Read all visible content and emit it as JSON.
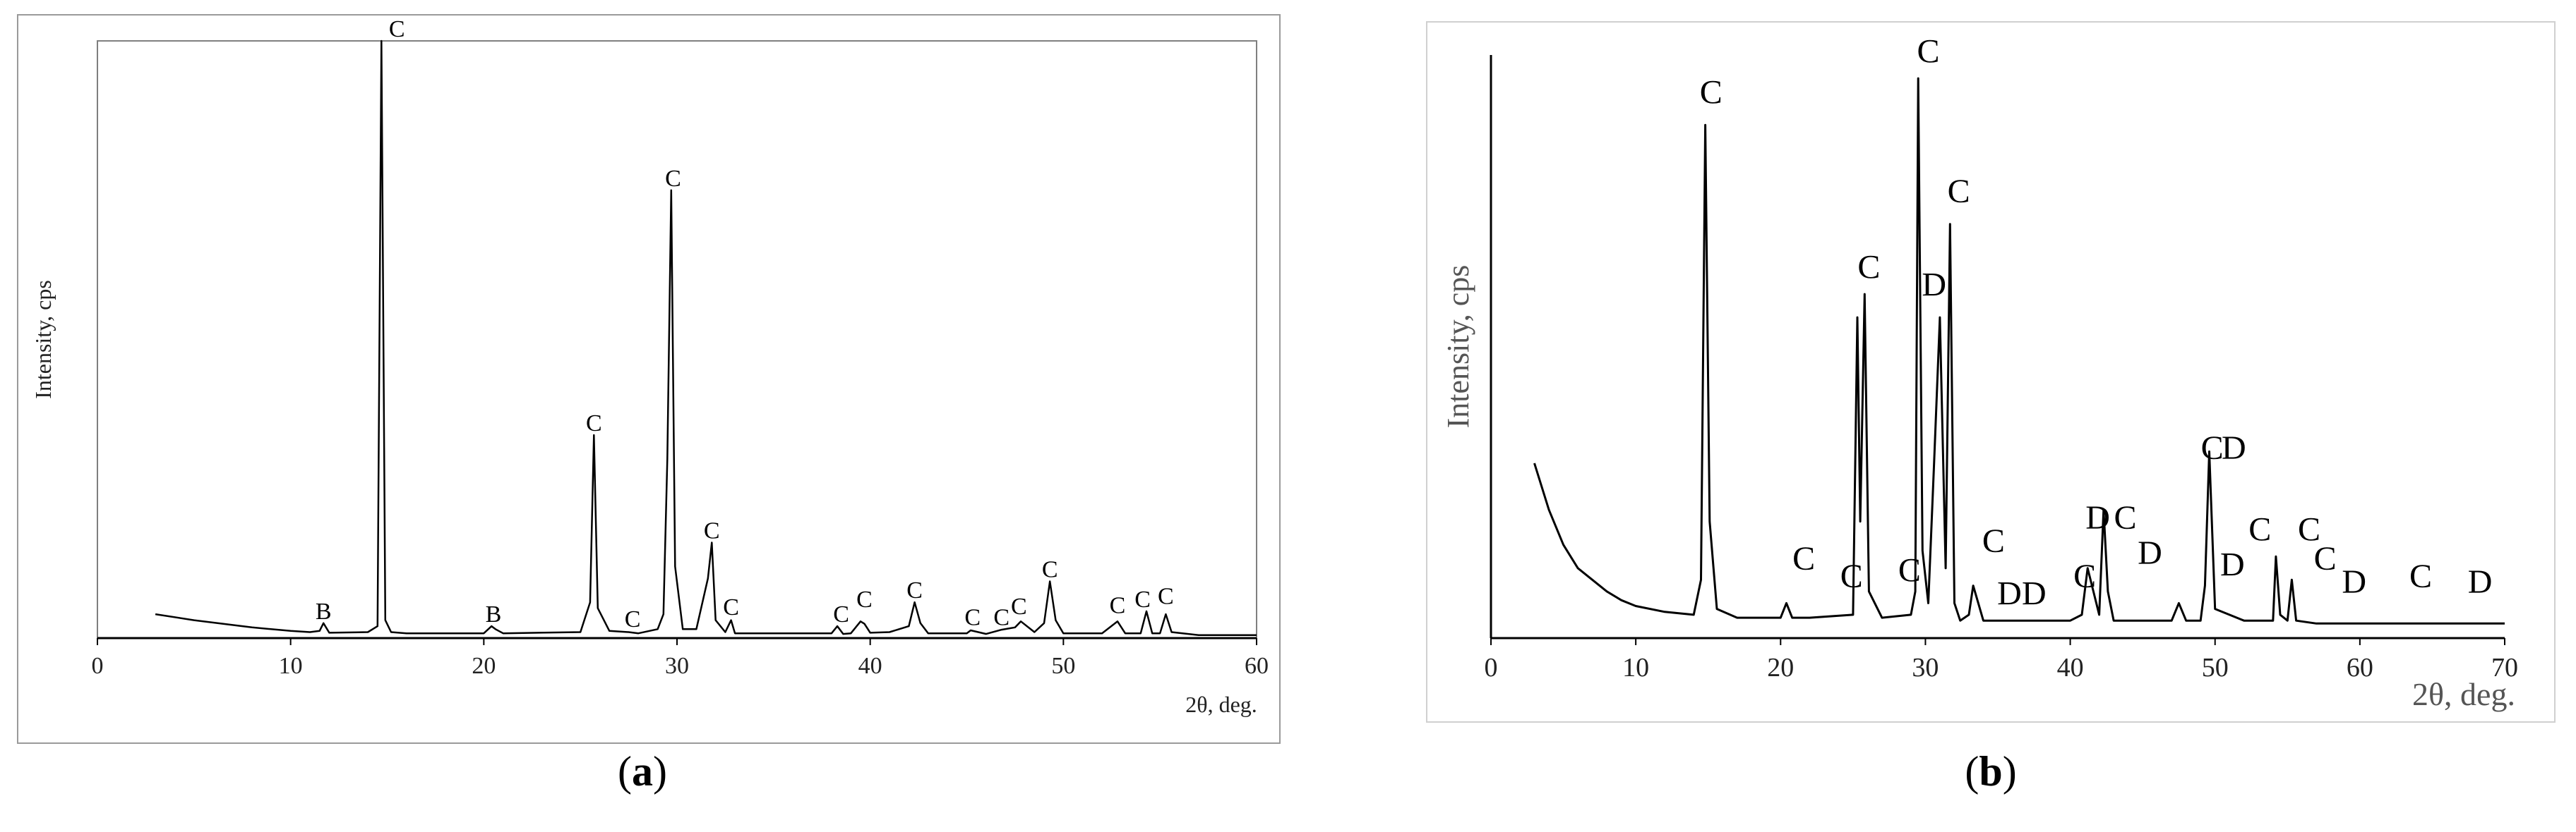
{
  "captions": {
    "a": "a",
    "b": "b"
  },
  "chart_data": [
    {
      "type": "line",
      "title": "",
      "xlabel": "2θ, deg.",
      "ylabel": "Intensity, cps",
      "xlim": [
        0,
        60
      ],
      "xticks": [
        0,
        10,
        20,
        30,
        40,
        50,
        60
      ],
      "ylim": [
        0,
        100
      ],
      "grid": false,
      "series": [
        {
          "x": [
            3,
            5,
            8,
            10,
            11,
            11.5,
            11.7,
            12,
            14,
            14.5,
            14.7,
            14.9,
            15.2,
            16,
            20,
            20.4,
            20.6,
            21,
            25,
            25.5,
            25.7,
            25.9,
            26.5,
            27.5,
            28,
            29,
            29.3,
            29.5,
            29.7,
            29.9,
            30.3,
            31,
            31.6,
            31.8,
            32,
            32.5,
            32.8,
            33,
            34,
            38,
            38.3,
            38.6,
            39,
            39.5,
            39.7,
            40,
            41,
            42,
            42.3,
            42.6,
            43,
            45,
            45.2,
            46,
            46.8,
            47.5,
            47.8,
            48.5,
            49,
            49.3,
            49.6,
            50,
            52,
            52.8,
            53.2,
            54,
            54.3,
            54.6,
            55,
            55.3,
            55.6,
            57,
            60
          ],
          "y": [
            4,
            3,
            1.8,
            1.2,
            1,
            1.2,
            2.5,
            0.9,
            1,
            2,
            100,
            3,
            1,
            0.8,
            0.8,
            2,
            1.5,
            0.8,
            1,
            6,
            34,
            5,
            1.2,
            1,
            0.8,
            1.5,
            4,
            30,
            75,
            12,
            1.5,
            1.5,
            10,
            16,
            3,
            1,
            3,
            0.8,
            0.8,
            0.8,
            2,
            0.7,
            0.8,
            2.8,
            2.4,
            0.9,
            1,
            2,
            6,
            2.5,
            0.8,
            0.8,
            1.3,
            0.7,
            1.4,
            1.8,
            2.8,
            1,
            2.5,
            9.5,
            3,
            0.8,
            0.8,
            2.8,
            0.8,
            0.8,
            4.5,
            0.8,
            0.8,
            4,
            1,
            0.5,
            0.5
          ]
        }
      ],
      "annotations": [
        {
          "x": 11.7,
          "y": 2.5,
          "text": "B"
        },
        {
          "x": 15.5,
          "y": 100,
          "text": "C"
        },
        {
          "x": 20.5,
          "y": 2.0,
          "text": "B"
        },
        {
          "x": 25.7,
          "y": 34,
          "text": "C"
        },
        {
          "x": 27.7,
          "y": 1.2,
          "text": "C"
        },
        {
          "x": 29.8,
          "y": 75,
          "text": "C"
        },
        {
          "x": 31.8,
          "y": 16,
          "text": "C"
        },
        {
          "x": 32.8,
          "y": 3.2,
          "text": "C"
        },
        {
          "x": 38.5,
          "y": 2.0,
          "text": "C"
        },
        {
          "x": 39.7,
          "y": 4.5,
          "text": "C"
        },
        {
          "x": 42.3,
          "y": 6.0,
          "text": "C"
        },
        {
          "x": 45.3,
          "y": 1.5,
          "text": "C"
        },
        {
          "x": 46.8,
          "y": 1.5,
          "text": "C"
        },
        {
          "x": 47.7,
          "y": 3.3,
          "text": "C"
        },
        {
          "x": 49.3,
          "y": 9.5,
          "text": "C"
        },
        {
          "x": 52.8,
          "y": 3.5,
          "text": "C"
        },
        {
          "x": 54.1,
          "y": 4.5,
          "text": "C"
        },
        {
          "x": 55.3,
          "y": 5.0,
          "text": "C"
        }
      ]
    },
    {
      "type": "line",
      "title": "",
      "xlabel": "2θ, deg.",
      "ylabel": "Intensity, cps",
      "xlim": [
        0,
        70
      ],
      "xticks": [
        0,
        10,
        20,
        30,
        40,
        50,
        60,
        70
      ],
      "ylim": [
        0,
        100
      ],
      "grid": false,
      "series": [
        {
          "x": [
            3,
            4,
            5,
            6,
            7,
            8,
            9,
            10,
            12,
            14,
            14.5,
            14.8,
            15.1,
            15.6,
            17,
            20,
            20.4,
            20.8,
            22,
            25,
            25.3,
            25.5,
            25.8,
            26.1,
            27,
            29,
            29.3,
            29.5,
            29.8,
            30.2,
            30.6,
            31,
            31.4,
            31.7,
            32,
            32.4,
            33,
            33.3,
            34,
            37,
            40,
            40.8,
            41.2,
            42,
            42.3,
            42.6,
            43,
            47,
            47.5,
            48,
            49,
            49.3,
            49.6,
            50,
            52,
            52.5,
            53,
            54,
            54.2,
            54.5,
            55,
            55.3,
            55.6,
            57,
            60,
            62,
            64,
            66,
            70
          ],
          "y": [
            30,
            22,
            16,
            12,
            10,
            8,
            6.5,
            5.5,
            4.5,
            4,
            10,
            88,
            20,
            5,
            3.5,
            3.5,
            6,
            3.5,
            3.5,
            4,
            55,
            20,
            59,
            8,
            3.5,
            4,
            8,
            96,
            15,
            6,
            30,
            55,
            12,
            71,
            6,
            3,
            4,
            9,
            3,
            3,
            3,
            4,
            12,
            4,
            22,
            8,
            3,
            3,
            6,
            3,
            3,
            9,
            32,
            5,
            3,
            3,
            3,
            3,
            14,
            4,
            3,
            10,
            3,
            2.5,
            2.5,
            2.5,
            2.5,
            2.5,
            2.5
          ]
        }
      ],
      "annotations": [
        {
          "x": 15.2,
          "y": 91,
          "text": "C"
        },
        {
          "x": 30.2,
          "y": 98,
          "text": "C"
        },
        {
          "x": 32.3,
          "y": 74,
          "text": "C"
        },
        {
          "x": 26.1,
          "y": 61,
          "text": "C"
        },
        {
          "x": 30.6,
          "y": 58,
          "text": "D"
        },
        {
          "x": 21.6,
          "y": 11,
          "text": "C"
        },
        {
          "x": 24.9,
          "y": 8,
          "text": "C"
        },
        {
          "x": 28.9,
          "y": 9,
          "text": "C"
        },
        {
          "x": 34.7,
          "y": 14,
          "text": "C"
        },
        {
          "x": 35.8,
          "y": 5,
          "text": "D"
        },
        {
          "x": 37.5,
          "y": 5,
          "text": "D"
        },
        {
          "x": 41.0,
          "y": 8,
          "text": "C"
        },
        {
          "x": 41.9,
          "y": 18,
          "text": "D"
        },
        {
          "x": 43.8,
          "y": 18,
          "text": "C"
        },
        {
          "x": 45.5,
          "y": 12,
          "text": "D"
        },
        {
          "x": 49.8,
          "y": 30,
          "text": "C"
        },
        {
          "x": 51.3,
          "y": 30,
          "text": "D"
        },
        {
          "x": 51.2,
          "y": 10,
          "text": "D"
        },
        {
          "x": 53.1,
          "y": 16,
          "text": "C"
        },
        {
          "x": 56.5,
          "y": 16,
          "text": "C"
        },
        {
          "x": 57.6,
          "y": 11,
          "text": "C"
        },
        {
          "x": 59.6,
          "y": 7,
          "text": "D"
        },
        {
          "x": 64.2,
          "y": 8,
          "text": "C"
        },
        {
          "x": 68.3,
          "y": 7,
          "text": "D"
        }
      ]
    }
  ]
}
